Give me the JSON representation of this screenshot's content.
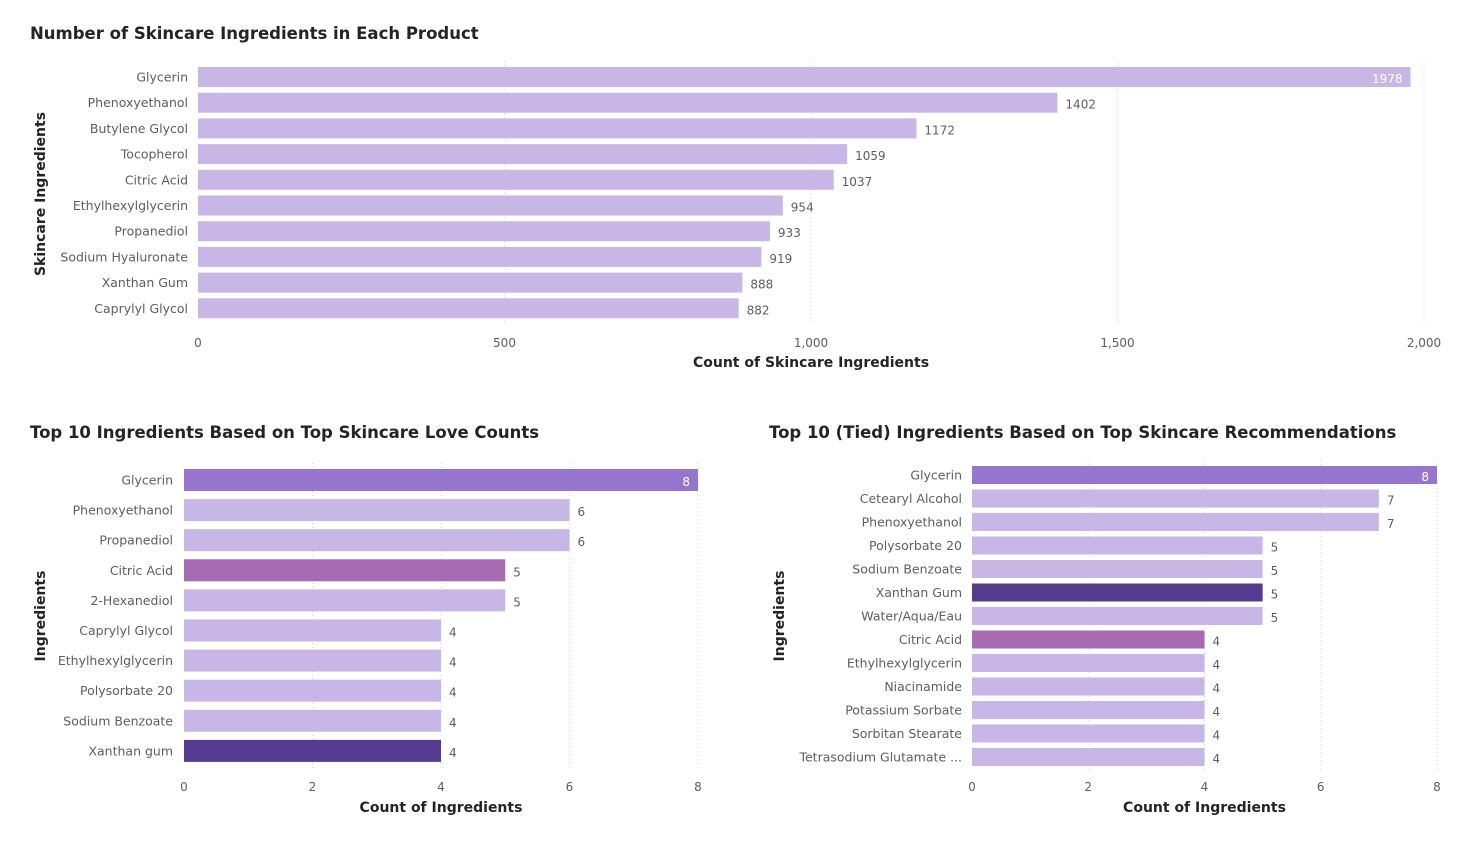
{
  "chart_data": [
    {
      "type": "bar",
      "orientation": "horizontal",
      "title": "Number of Skincare Ingredients in Each Product",
      "xlabel": "Count of Skincare Ingredients",
      "ylabel": "Skincare Ingredients",
      "xlim": [
        0,
        2000
      ],
      "xticks": [
        0,
        500,
        1000,
        1500,
        2000
      ],
      "xtick_labels": [
        "0",
        "500",
        "1,000",
        "1,500",
        "2,000"
      ],
      "grid": true,
      "categories": [
        "Glycerin",
        "Phenoxyethanol",
        "Butylene Glycol",
        "Tocopherol",
        "Citric Acid",
        "Ethylhexylglycerin",
        "Propanediol",
        "Sodium Hyaluronate",
        "Xanthan Gum",
        "Caprylyl Glycol"
      ],
      "values": [
        1978,
        1402,
        1172,
        1059,
        1037,
        954,
        933,
        919,
        888,
        882
      ],
      "value_labels": [
        "1978",
        "1402",
        "1172",
        "1059",
        "1037",
        "954",
        "933",
        "919",
        "888",
        "882"
      ],
      "colors": [
        "#c8b7e6",
        "#c8b7e6",
        "#c8b7e6",
        "#c8b7e6",
        "#c8b7e6",
        "#c8b7e6",
        "#c8b7e6",
        "#c8b7e6",
        "#c8b7e6",
        "#c8b7e6"
      ]
    },
    {
      "type": "bar",
      "orientation": "horizontal",
      "title": "Top 10 Ingredients Based on Top Skincare Love Counts",
      "xlabel": "Count of Ingredients",
      "ylabel": "Ingredients",
      "xlim": [
        0,
        8
      ],
      "xticks": [
        0,
        2,
        4,
        6,
        8
      ],
      "xtick_labels": [
        "0",
        "2",
        "4",
        "6",
        "8"
      ],
      "grid": true,
      "categories": [
        "Glycerin",
        "Phenoxyethanol",
        "Propanediol",
        "Citric Acid",
        "2-Hexanediol",
        "Caprylyl Glycol",
        "Ethylhexylglycerin",
        "Polysorbate 20",
        "Sodium Benzoate",
        "Xanthan gum"
      ],
      "values": [
        8,
        6,
        6,
        5,
        5,
        4,
        4,
        4,
        4,
        4
      ],
      "value_labels": [
        "8",
        "6",
        "6",
        "5",
        "5",
        "4",
        "4",
        "4",
        "4",
        "4"
      ],
      "colors": [
        "#9575cd",
        "#c8b7e6",
        "#c8b7e6",
        "#a66bb3",
        "#c8b7e6",
        "#c8b7e6",
        "#c8b7e6",
        "#c8b7e6",
        "#c8b7e6",
        "#553c91"
      ]
    },
    {
      "type": "bar",
      "orientation": "horizontal",
      "title": "Top 10 (Tied) Ingredients Based on Top Skincare Recommendations",
      "xlabel": "Count of Ingredients",
      "ylabel": "Ingredients",
      "xlim": [
        0,
        8
      ],
      "xticks": [
        0,
        2,
        4,
        6,
        8
      ],
      "xtick_labels": [
        "0",
        "2",
        "4",
        "6",
        "8"
      ],
      "grid": true,
      "categories": [
        "Glycerin",
        "Cetearyl Alcohol",
        "Phenoxyethanol",
        "Polysorbate 20",
        "Sodium Benzoate",
        "Xanthan Gum",
        "Water/Aqua/Eau",
        "Citric Acid",
        "Ethylhexylglycerin",
        "Niacinamide",
        "Potassium Sorbate",
        "Sorbitan Stearate",
        "Tetrasodium Glutamate ..."
      ],
      "values": [
        8,
        7,
        7,
        5,
        5,
        5,
        5,
        4,
        4,
        4,
        4,
        4,
        4
      ],
      "value_labels": [
        "8",
        "7",
        "7",
        "5",
        "5",
        "5",
        "5",
        "4",
        "4",
        "4",
        "4",
        "4",
        "4"
      ],
      "colors": [
        "#9575cd",
        "#c8b7e6",
        "#c8b7e6",
        "#c8b7e6",
        "#c8b7e6",
        "#553c91",
        "#c8b7e6",
        "#a66bb3",
        "#c8b7e6",
        "#c8b7e6",
        "#c8b7e6",
        "#c8b7e6",
        "#c8b7e6"
      ]
    }
  ]
}
